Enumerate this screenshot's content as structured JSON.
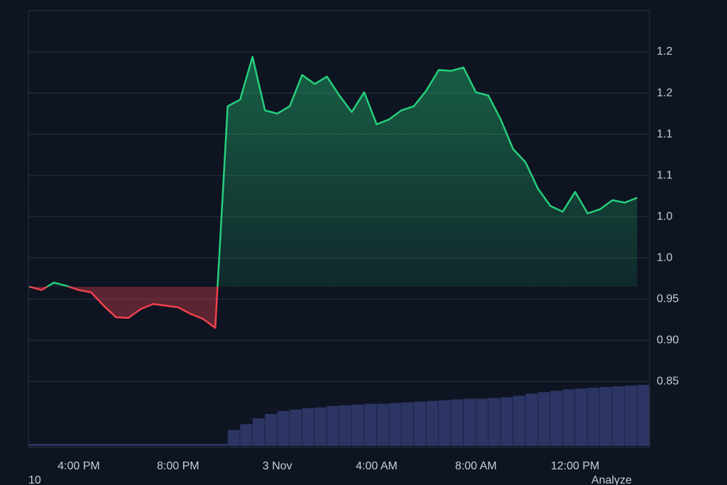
{
  "chart_data": {
    "type": "baseline",
    "x": [
      14,
      14.5,
      15,
      15.5,
      16,
      16.5,
      17,
      17.5,
      18,
      18.5,
      19,
      19.5,
      20,
      20.5,
      21,
      21.5,
      22,
      22.5,
      23,
      23.5,
      24,
      24.5,
      25,
      25.5,
      26,
      26.5,
      27,
      27.5,
      28,
      28.5,
      29,
      29.5,
      30,
      30.5,
      31,
      31.5,
      32,
      32.5,
      33,
      33.5,
      34,
      34.5,
      35,
      35.5,
      36,
      36.5,
      37,
      37.5,
      38,
      38.5
    ],
    "series": [
      {
        "values": [
          0.965,
          0.961,
          0.97,
          0.966,
          0.961,
          0.958,
          0.942,
          0.928,
          0.927,
          0.938,
          0.944,
          0.942,
          0.94,
          0.932,
          0.926,
          0.915,
          1.184,
          1.192,
          1.244,
          1.179,
          1.175,
          1.184,
          1.222,
          1.211,
          1.22,
          1.197,
          1.177,
          1.201,
          1.162,
          1.168,
          1.179,
          1.184,
          1.203,
          1.228,
          1.227,
          1.231,
          1.201,
          1.197,
          1.168,
          1.132,
          1.116,
          1.084,
          1.063,
          1.056,
          1.08,
          1.054,
          1.059,
          1.07,
          1.067,
          1.073
        ],
        "color_up": "#26d07c",
        "color_down": "#f0424f",
        "baseline": 0.965
      },
      {
        "type": "bar",
        "color": "#2c3563",
        "values": [
          3,
          3,
          3,
          3,
          3,
          3,
          3,
          3,
          3,
          3,
          3,
          3,
          3,
          3,
          3,
          3,
          22,
          30,
          38,
          44,
          48,
          50,
          52,
          53,
          55,
          56,
          57,
          58,
          58,
          59,
          60,
          61,
          62,
          63,
          64,
          65,
          65,
          66,
          67,
          69,
          72,
          74,
          76,
          78,
          79,
          80,
          81,
          82,
          83,
          84
        ]
      }
    ],
    "xlim": [
      13.97,
      39
    ],
    "xticks": [
      {
        "value": 16,
        "label": "4:00 PM"
      },
      {
        "value": 20,
        "label": "8:00 PM"
      },
      {
        "value": 24,
        "label": "3 Nov"
      },
      {
        "value": 28,
        "label": "4:00 AM"
      },
      {
        "value": 32,
        "label": "8:00 AM"
      },
      {
        "value": 36,
        "label": "12:00 PM"
      }
    ],
    "ylim": [
      0.77,
      1.3
    ],
    "yticks": [
      {
        "value": 0.85,
        "label": "0.85"
      },
      {
        "value": 0.9,
        "label": "0.90"
      },
      0.95,
      {
        "value": 1.0,
        "label": "1.0"
      },
      {
        "value": 1.05,
        "label": "1.0"
      },
      {
        "value": 1.1,
        "label": "1.1"
      },
      {
        "value": 1.15,
        "label": "1.1"
      },
      {
        "value": 1.2,
        "label": "1.2"
      },
      {
        "value": 1.25,
        "label": "1.2"
      }
    ],
    "grid": true,
    "annotations": [
      "10",
      "Analyze"
    ]
  }
}
